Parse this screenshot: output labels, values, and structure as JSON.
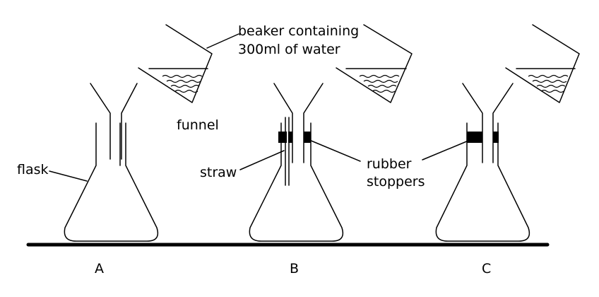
{
  "labels": {
    "beaker_line1": "beaker containing",
    "beaker_line2": "300ml of water",
    "funnel": "funnel",
    "flask": "flask",
    "straw": "straw",
    "rubber": "rubber",
    "stoppers": "stoppers"
  },
  "setups": [
    {
      "id": "A",
      "label": "A"
    },
    {
      "id": "B",
      "label": "B"
    },
    {
      "id": "C",
      "label": "C"
    }
  ]
}
